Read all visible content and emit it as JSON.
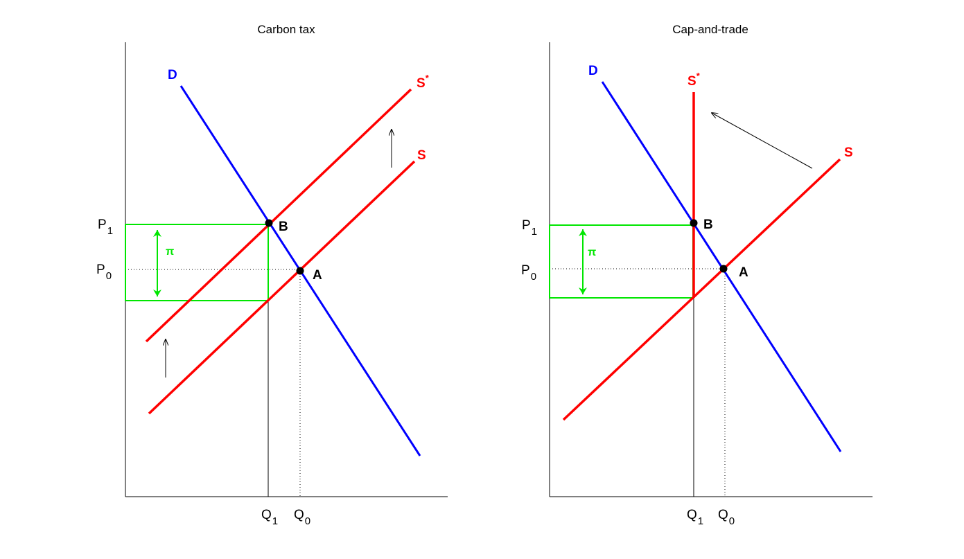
{
  "colors": {
    "demand": "#0000ff",
    "supply": "#ff0000",
    "profit": "#00e600",
    "axis": "#000000"
  },
  "panels": [
    {
      "title": "Carbon tax",
      "demand_label": "D",
      "supply_label": "S",
      "shifted_supply_label": "S",
      "shifted_supply_sup": "*",
      "point_b": "B",
      "point_a": "A",
      "p1": "P",
      "p1_sub": "1",
      "p0": "P",
      "p0_sub": "0",
      "q1": "Q",
      "q1_sub": "1",
      "q0": "Q",
      "q0_sub": "0",
      "profit_label": "π"
    },
    {
      "title": "Cap-and-trade",
      "demand_label": "D",
      "supply_label": "S",
      "shifted_supply_label": "S",
      "shifted_supply_sup": "*",
      "point_b": "B",
      "point_a": "A",
      "p1": "P",
      "p1_sub": "1",
      "p0": "P",
      "p0_sub": "0",
      "q1": "Q",
      "q1_sub": "1",
      "q0": "Q",
      "q0_sub": "0",
      "profit_label": "π"
    }
  ]
}
